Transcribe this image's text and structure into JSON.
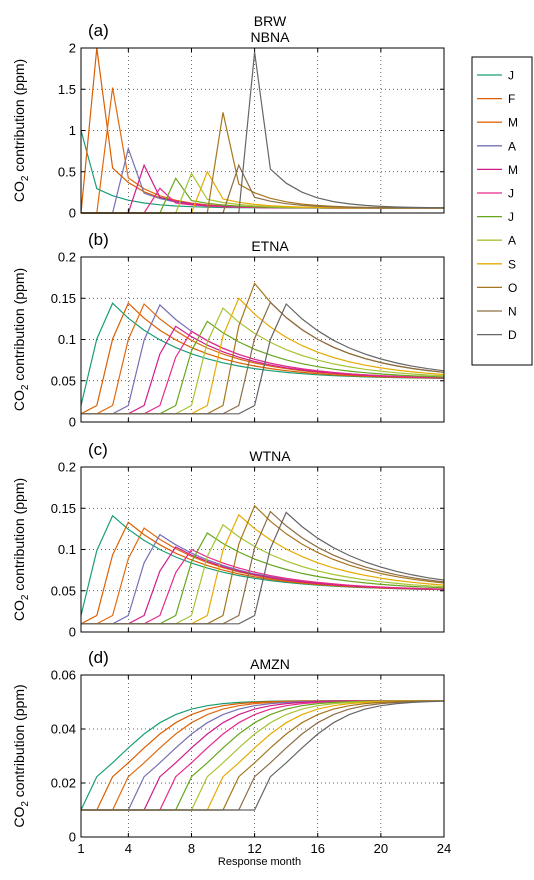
{
  "chart_data": [
    {
      "panel_label": "(a)",
      "title_lines": [
        "BRW",
        "NBNA"
      ],
      "type": "line",
      "ylabel_main": "CO",
      "ylabel_sub": "2",
      "ylabel_rest": " contribution (ppm)",
      "xlim": [
        1,
        24
      ],
      "ylim": [
        0,
        2
      ],
      "yticks": [
        0,
        0.5,
        1,
        1.5,
        2
      ],
      "ytick_labels": [
        "0",
        "0.5",
        "1",
        "1.5",
        "2"
      ],
      "shape": {
        "peak": [
          1.0,
          2.0,
          1.52,
          0.78,
          0.58,
          0.3,
          0.42,
          0.48,
          0.5,
          1.22,
          0.58,
          1.95
        ],
        "tail": 0.06,
        "decay": 0.45,
        "knee": 0.25
      }
    },
    {
      "panel_label": "(b)",
      "title_lines": [
        "ETNA"
      ],
      "type": "line",
      "ylabel_main": "CO",
      "ylabel_sub": "2",
      "ylabel_rest": " contribution (ppm)",
      "xlim": [
        1,
        24
      ],
      "ylim": [
        0,
        0.2
      ],
      "yticks": [
        0,
        0.05,
        0.1,
        0.15,
        0.2
      ],
      "ytick_labels": [
        "0",
        "0.05",
        "0.1",
        "0.15",
        "0.2"
      ],
      "shape": {
        "peak": [
          0.144,
          0.144,
          0.143,
          0.142,
          0.116,
          0.11,
          0.122,
          0.138,
          0.15,
          0.168,
          0.145,
          0.143
        ],
        "base": 0.01,
        "pre": 0.02,
        "tail": 0.052,
        "decay": 0.22
      }
    },
    {
      "panel_label": "(c)",
      "title_lines": [
        "WTNA"
      ],
      "type": "line",
      "ylabel_main": "CO",
      "ylabel_sub": "2",
      "ylabel_rest": " contribution (ppm)",
      "xlim": [
        1,
        24
      ],
      "ylim": [
        0,
        0.2
      ],
      "yticks": [
        0,
        0.05,
        0.1,
        0.15,
        0.2
      ],
      "ytick_labels": [
        "0",
        "0.05",
        "0.1",
        "0.15",
        "0.2"
      ],
      "shape": {
        "peak": [
          0.141,
          0.133,
          0.126,
          0.118,
          0.103,
          0.1,
          0.12,
          0.13,
          0.142,
          0.153,
          0.146,
          0.145
        ],
        "base": 0.01,
        "pre": 0.02,
        "tail": 0.05,
        "decay": 0.2
      }
    },
    {
      "panel_label": "(d)",
      "title_lines": [
        "AMZN"
      ],
      "type": "line",
      "ylabel_main": "CO",
      "ylabel_sub": "2",
      "ylabel_rest": " contribution (ppm)",
      "xlim": [
        1,
        24
      ],
      "ylim": [
        0,
        0.06
      ],
      "yticks": [
        0,
        0.02,
        0.04,
        0.06
      ],
      "ytick_labels": [
        "0",
        "0.02",
        "0.04",
        "0.06"
      ],
      "shape": {
        "sigmoid": true,
        "base": 0.01,
        "top": 0.0505,
        "rate": 0.55,
        "offset": 2.5
      }
    }
  ],
  "xticks": [
    1,
    4,
    8,
    12,
    16,
    20,
    24
  ],
  "xtick_labels": [
    "1",
    "4",
    "8",
    "12",
    "16",
    "20",
    "24"
  ],
  "xlabel": "Response month",
  "grid": true,
  "grid_style": "dotted",
  "legend_position": "right",
  "series": [
    {
      "name": "J",
      "start_month": 1,
      "color": "#1b9e77"
    },
    {
      "name": "F",
      "start_month": 2,
      "color": "#d95f02"
    },
    {
      "name": "M",
      "start_month": 3,
      "color": "#e06a10"
    },
    {
      "name": "A",
      "start_month": 4,
      "color": "#7570b3"
    },
    {
      "name": "M",
      "start_month": 5,
      "color": "#d01c8b"
    },
    {
      "name": "J",
      "start_month": 6,
      "color": "#e7298a"
    },
    {
      "name": "J",
      "start_month": 7,
      "color": "#66a61e"
    },
    {
      "name": "A",
      "start_month": 8,
      "color": "#a6c436"
    },
    {
      "name": "S",
      "start_month": 9,
      "color": "#e6ab02"
    },
    {
      "name": "O",
      "start_month": 10,
      "color": "#a6761d"
    },
    {
      "name": "N",
      "start_month": 11,
      "color": "#8c6d46"
    },
    {
      "name": "D",
      "start_month": 12,
      "color": "#666666"
    }
  ]
}
